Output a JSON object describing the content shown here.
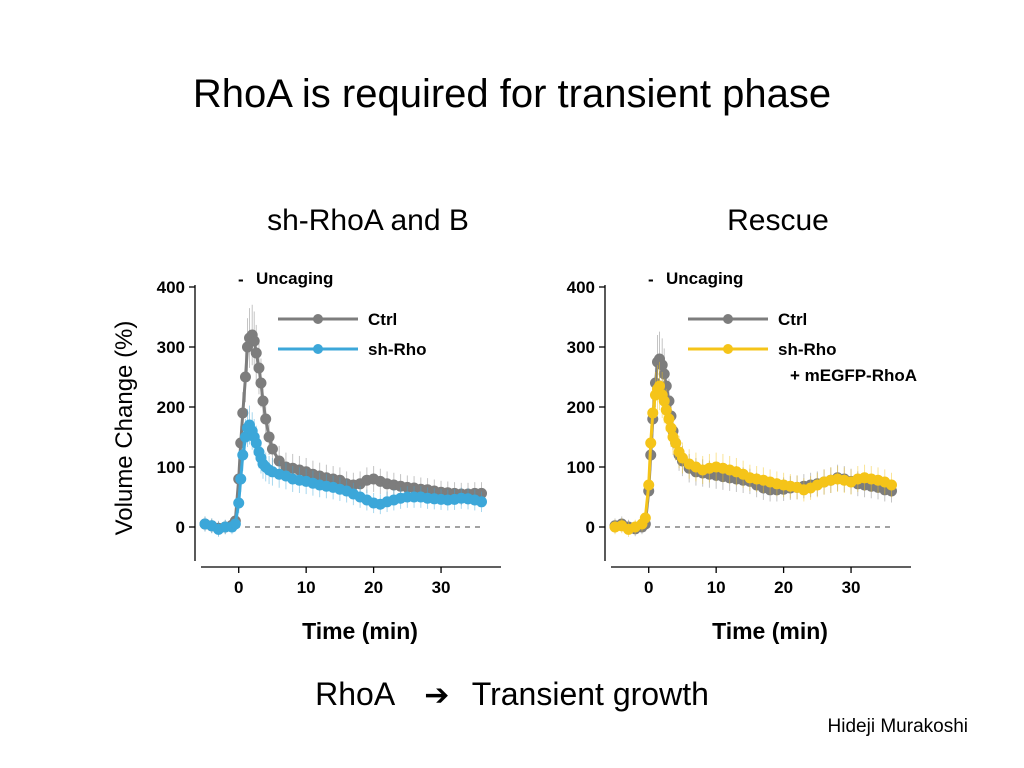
{
  "slide": {
    "title": "RhoA is required for transient phase",
    "conclusion_left": "RhoA",
    "conclusion_arrow": "➔",
    "conclusion_right": "Transient growth",
    "author": "Hideji Murakoshi"
  },
  "chart_data": [
    {
      "type": "line",
      "title": "sh-RhoA and B",
      "xlabel": "Time (min)",
      "ylabel": "Volume Change (%)",
      "xlim": [
        -5,
        38
      ],
      "ylim": [
        -50,
        420
      ],
      "xticks": [
        0,
        10,
        20,
        30
      ],
      "yticks": [
        0,
        100,
        200,
        300,
        400
      ],
      "annotation": "Uncaging",
      "annotation_marker": "-",
      "legend": "top-right",
      "grid": false,
      "baseline": 0,
      "series": [
        {
          "name": "Ctrl",
          "color": "#7d7d7d",
          "x": [
            -5,
            -4,
            -3,
            -2,
            -1,
            -0.5,
            0,
            0.3,
            0.6,
            1,
            1.3,
            1.6,
            2,
            2.3,
            2.6,
            3,
            3.3,
            3.6,
            4,
            4.5,
            5,
            6,
            7,
            8,
            9,
            10,
            11,
            12,
            13,
            14,
            15,
            16,
            17,
            18,
            19,
            20,
            21,
            22,
            23,
            24,
            25,
            26,
            27,
            28,
            29,
            30,
            31,
            32,
            33,
            34,
            35,
            36
          ],
          "y": [
            5,
            2,
            -2,
            0,
            3,
            10,
            80,
            140,
            190,
            250,
            300,
            315,
            320,
            310,
            290,
            265,
            240,
            210,
            180,
            150,
            130,
            110,
            100,
            98,
            95,
            92,
            88,
            85,
            82,
            80,
            78,
            72,
            70,
            72,
            78,
            80,
            76,
            72,
            70,
            68,
            66,
            65,
            63,
            62,
            60,
            58,
            57,
            56,
            55,
            55,
            56,
            56
          ]
        },
        {
          "name": "sh-Rho",
          "color": "#3ca7d9",
          "x": [
            -5,
            -4,
            -3,
            -2,
            -1,
            -0.5,
            0,
            0.3,
            0.6,
            1,
            1.3,
            1.6,
            2,
            2.3,
            2.6,
            3,
            3.3,
            3.6,
            4,
            4.5,
            5,
            6,
            7,
            8,
            9,
            10,
            11,
            12,
            13,
            14,
            15,
            16,
            17,
            18,
            19,
            20,
            21,
            22,
            23,
            24,
            25,
            26,
            27,
            28,
            29,
            30,
            31,
            32,
            33,
            34,
            35,
            36
          ],
          "y": [
            5,
            2,
            -4,
            0,
            0,
            5,
            40,
            80,
            120,
            150,
            165,
            170,
            160,
            150,
            140,
            125,
            115,
            105,
            100,
            95,
            92,
            88,
            85,
            80,
            78,
            76,
            73,
            70,
            68,
            66,
            63,
            60,
            55,
            50,
            45,
            40,
            38,
            42,
            45,
            48,
            50,
            50,
            50,
            48,
            47,
            46,
            45,
            46,
            48,
            47,
            45,
            42
          ]
        }
      ]
    },
    {
      "type": "line",
      "title": "Rescue",
      "xlabel": "Time (min)",
      "ylabel": "",
      "xlim": [
        -5,
        38
      ],
      "ylim": [
        -50,
        420
      ],
      "xticks": [
        0,
        10,
        20,
        30
      ],
      "yticks": [
        0,
        100,
        200,
        300,
        400
      ],
      "annotation": "Uncaging",
      "annotation_marker": "-",
      "legend": "top-right",
      "grid": false,
      "baseline": 0,
      "series": [
        {
          "name": "Ctrl",
          "color": "#7d7d7d",
          "x": [
            -5,
            -4,
            -3,
            -2,
            -1,
            -0.5,
            0,
            0.3,
            0.6,
            1,
            1.3,
            1.6,
            2,
            2.3,
            2.6,
            3,
            3.3,
            3.6,
            4,
            4.5,
            5,
            6,
            7,
            8,
            9,
            10,
            11,
            12,
            13,
            14,
            15,
            16,
            17,
            18,
            19,
            20,
            21,
            22,
            23,
            24,
            25,
            26,
            27,
            28,
            29,
            30,
            31,
            32,
            33,
            34,
            35,
            36
          ],
          "y": [
            2,
            5,
            0,
            -3,
            0,
            5,
            60,
            120,
            180,
            240,
            275,
            280,
            270,
            255,
            235,
            210,
            185,
            160,
            140,
            120,
            110,
            98,
            92,
            90,
            88,
            86,
            84,
            82,
            80,
            78,
            76,
            70,
            65,
            62,
            62,
            63,
            65,
            66,
            68,
            70,
            72,
            75,
            78,
            82,
            80,
            76,
            72,
            70,
            68,
            66,
            62,
            60
          ]
        },
        {
          "name": "sh-Rho\n+ mEGFP-RhoA",
          "color": "#f5c419",
          "x": [
            -5,
            -4,
            -3,
            -2,
            -1,
            -0.5,
            0,
            0.3,
            0.6,
            1,
            1.3,
            1.6,
            2,
            2.3,
            2.6,
            3,
            3.3,
            3.6,
            4,
            4.5,
            5,
            6,
            7,
            8,
            9,
            10,
            11,
            12,
            13,
            14,
            15,
            16,
            17,
            18,
            19,
            20,
            21,
            22,
            23,
            24,
            25,
            26,
            27,
            28,
            29,
            30,
            31,
            32,
            33,
            34,
            35,
            36
          ],
          "y": [
            0,
            2,
            -4,
            0,
            5,
            15,
            70,
            140,
            190,
            220,
            230,
            235,
            220,
            210,
            195,
            180,
            165,
            150,
            140,
            125,
            115,
            105,
            100,
            95,
            98,
            100,
            98,
            95,
            92,
            88,
            82,
            80,
            78,
            75,
            72,
            70,
            68,
            66,
            62,
            65,
            70,
            75,
            78,
            80,
            78,
            75,
            80,
            82,
            80,
            78,
            75,
            70
          ]
        }
      ]
    }
  ]
}
